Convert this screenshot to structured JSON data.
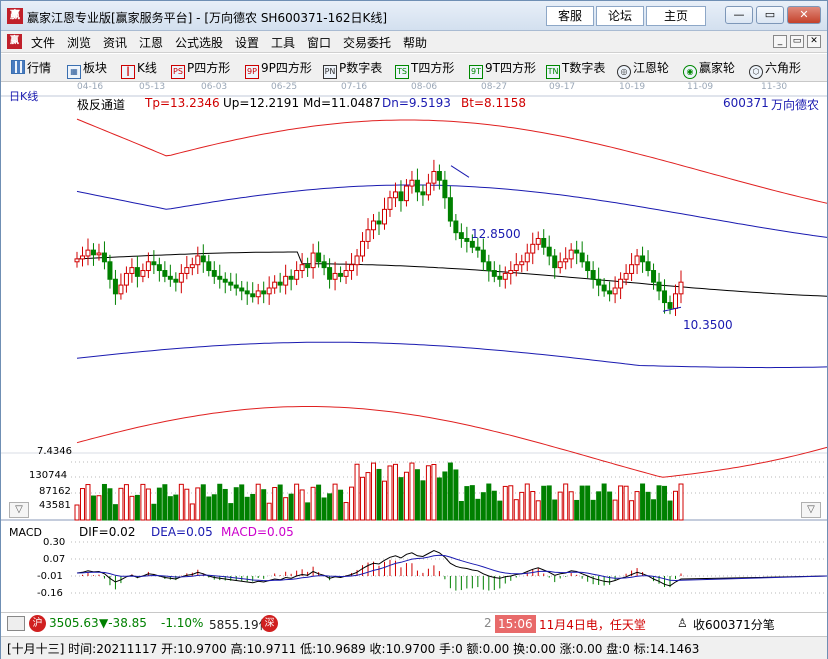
{
  "window": {
    "logo_text": "赢",
    "title": "赢家江恩专业版[赢家服务平台] - [万向德农  SH600371-162日K线]",
    "links": [
      "客服",
      "论坛",
      "主页"
    ],
    "controls": {
      "minimize": "—",
      "restore": "▭",
      "close": "✕"
    },
    "mdi_controls": {
      "minimize": "_",
      "restore": "▭",
      "close": "✕"
    }
  },
  "menu": {
    "logo_text": "赢",
    "items": [
      "文件",
      "浏览",
      "资讯",
      "江恩",
      "公式选股",
      "设置",
      "工具",
      "窗口",
      "交易委托",
      "帮助"
    ]
  },
  "toolbar": {
    "items": [
      {
        "label": "行情",
        "icon": "grid-icon",
        "glyph": ""
      },
      {
        "label": "板块",
        "icon": "blocks-icon",
        "glyph": "▦"
      },
      {
        "label": "K线",
        "icon": "candles-icon",
        "glyph": "┃"
      },
      {
        "label": "P四方形",
        "icon": "ps-icon",
        "glyph": "PS"
      },
      {
        "label": "9P四方形",
        "icon": "9p-icon",
        "glyph": "9P"
      },
      {
        "label": "P数字表",
        "icon": "pn-icon",
        "glyph": "PN"
      },
      {
        "label": "T四方形",
        "icon": "ts-icon",
        "glyph": "TS"
      },
      {
        "label": "9T四方形",
        "icon": "9t-icon",
        "glyph": "9T"
      },
      {
        "label": "T数字表",
        "icon": "tn-icon",
        "glyph": "TN"
      },
      {
        "label": "江恩轮",
        "icon": "gann-wheel-icon",
        "glyph": "◎"
      },
      {
        "label": "赢家轮",
        "icon": "winner-wheel-icon",
        "glyph": "◉"
      },
      {
        "label": "六角形",
        "icon": "hexagon-icon",
        "glyph": "⬡"
      }
    ]
  },
  "chart": {
    "period_label": "日K线",
    "date_ticks": [
      "04-16",
      "05-13",
      "06-03",
      "06-25",
      "07-16",
      "08-06",
      "08-27",
      "09-17",
      "10-19",
      "11-09",
      "11-30"
    ],
    "indicator_name": "极反通道",
    "tp": "Tp=13.2346",
    "up": "Up=12.2191",
    "md": "Md=11.0487",
    "dn": "Dn=9.5193",
    "bt": "Bt=8.1158",
    "stock_code": "600371",
    "stock_name": "万向德农",
    "high_label": "12.8500",
    "low_label": "10.3500",
    "volume_labels": [
      "7.4346",
      "130744",
      "87162",
      "43581"
    ],
    "macd_title": "MACD",
    "dif": "DIF=0.02",
    "dea": "DEA=0.05",
    "macd": "MACD=0.05",
    "macd_ticks": [
      "0.30",
      "0.07",
      "-0.01",
      "-0.16"
    ],
    "colors": {
      "up": "#d00000",
      "down": "#008000",
      "channel_outer": "#e02020",
      "channel_inner": "#1a1ab0",
      "mid": "#000000",
      "macd_pink": "#cc00cc"
    }
  },
  "chart_data": {
    "type": "candlestick",
    "title": "日K线",
    "xlabel": "",
    "ylabel": "",
    "x_ticks": [
      "04-16",
      "05-13",
      "06-03",
      "06-25",
      "07-16",
      "08-06",
      "08-27",
      "09-17",
      "10-19",
      "11-09",
      "11-30"
    ],
    "annotations": [
      {
        "label": "12.8500",
        "kind": "period high"
      },
      {
        "label": "10.3500",
        "kind": "period low"
      }
    ],
    "channel": {
      "Tp": 13.2346,
      "Up": 12.2191,
      "Md": 11.0487,
      "Dn": 9.5193,
      "Bt": 8.1158
    },
    "closes": [
      11.25,
      11.3,
      11.4,
      11.32,
      11.35,
      11.2,
      10.9,
      10.65,
      10.8,
      11.0,
      11.1,
      10.95,
      11.05,
      11.2,
      11.15,
      11.05,
      10.95,
      10.9,
      10.85,
      11.0,
      11.1,
      11.15,
      11.3,
      11.2,
      11.05,
      10.95,
      10.9,
      10.85,
      10.8,
      10.75,
      10.7,
      10.65,
      10.6,
      10.7,
      10.65,
      10.75,
      10.85,
      10.8,
      10.95,
      10.9,
      11.05,
      11.15,
      11.1,
      11.35,
      11.2,
      11.1,
      10.9,
      11.0,
      10.95,
      11.05,
      11.15,
      11.3,
      11.55,
      11.75,
      11.9,
      11.85,
      12.1,
      12.3,
      12.4,
      12.25,
      12.5,
      12.6,
      12.4,
      12.35,
      12.55,
      12.75,
      12.6,
      12.3,
      11.9,
      11.7,
      11.6,
      11.55,
      11.45,
      11.4,
      11.2,
      11.05,
      10.95,
      10.9,
      11.0,
      11.05,
      11.15,
      11.2,
      11.35,
      11.5,
      11.6,
      11.45,
      11.3,
      11.1,
      11.2,
      11.25,
      11.4,
      11.35,
      11.2,
      11.05,
      10.9,
      10.8,
      10.7,
      10.65,
      10.75,
      10.9,
      11.0,
      11.15,
      11.3,
      11.2,
      11.05,
      10.85,
      10.7,
      10.5,
      10.4,
      10.65,
      10.85
    ],
    "volume_max": 130744,
    "volume_ticks": [
      43581,
      87162,
      130744
    ],
    "macd": {
      "DIF": 0.02,
      "DEA": 0.05,
      "MACD": 0.05,
      "y_ticks": [
        0.3,
        0.07,
        -0.01,
        -0.16
      ]
    }
  },
  "status": {
    "index_icon": "沪",
    "index_value": "3505.63",
    "index_change": "▼-38.85",
    "index_pct": "-1.10%",
    "turnover": "5855.19亿",
    "second_icon": "深",
    "partial_digit": "2",
    "time": "15:06",
    "news": "11月4日电，任天堂",
    "alarm_text": "收600371分笔"
  },
  "bottom": {
    "text": "[十月十三] 时间:20211117 开:10.9700 高:10.9711 低:10.9689 收:10.9700 手:0 额:0.00 换:0.00 涨:0.00 盘:0 标:14.1463"
  }
}
